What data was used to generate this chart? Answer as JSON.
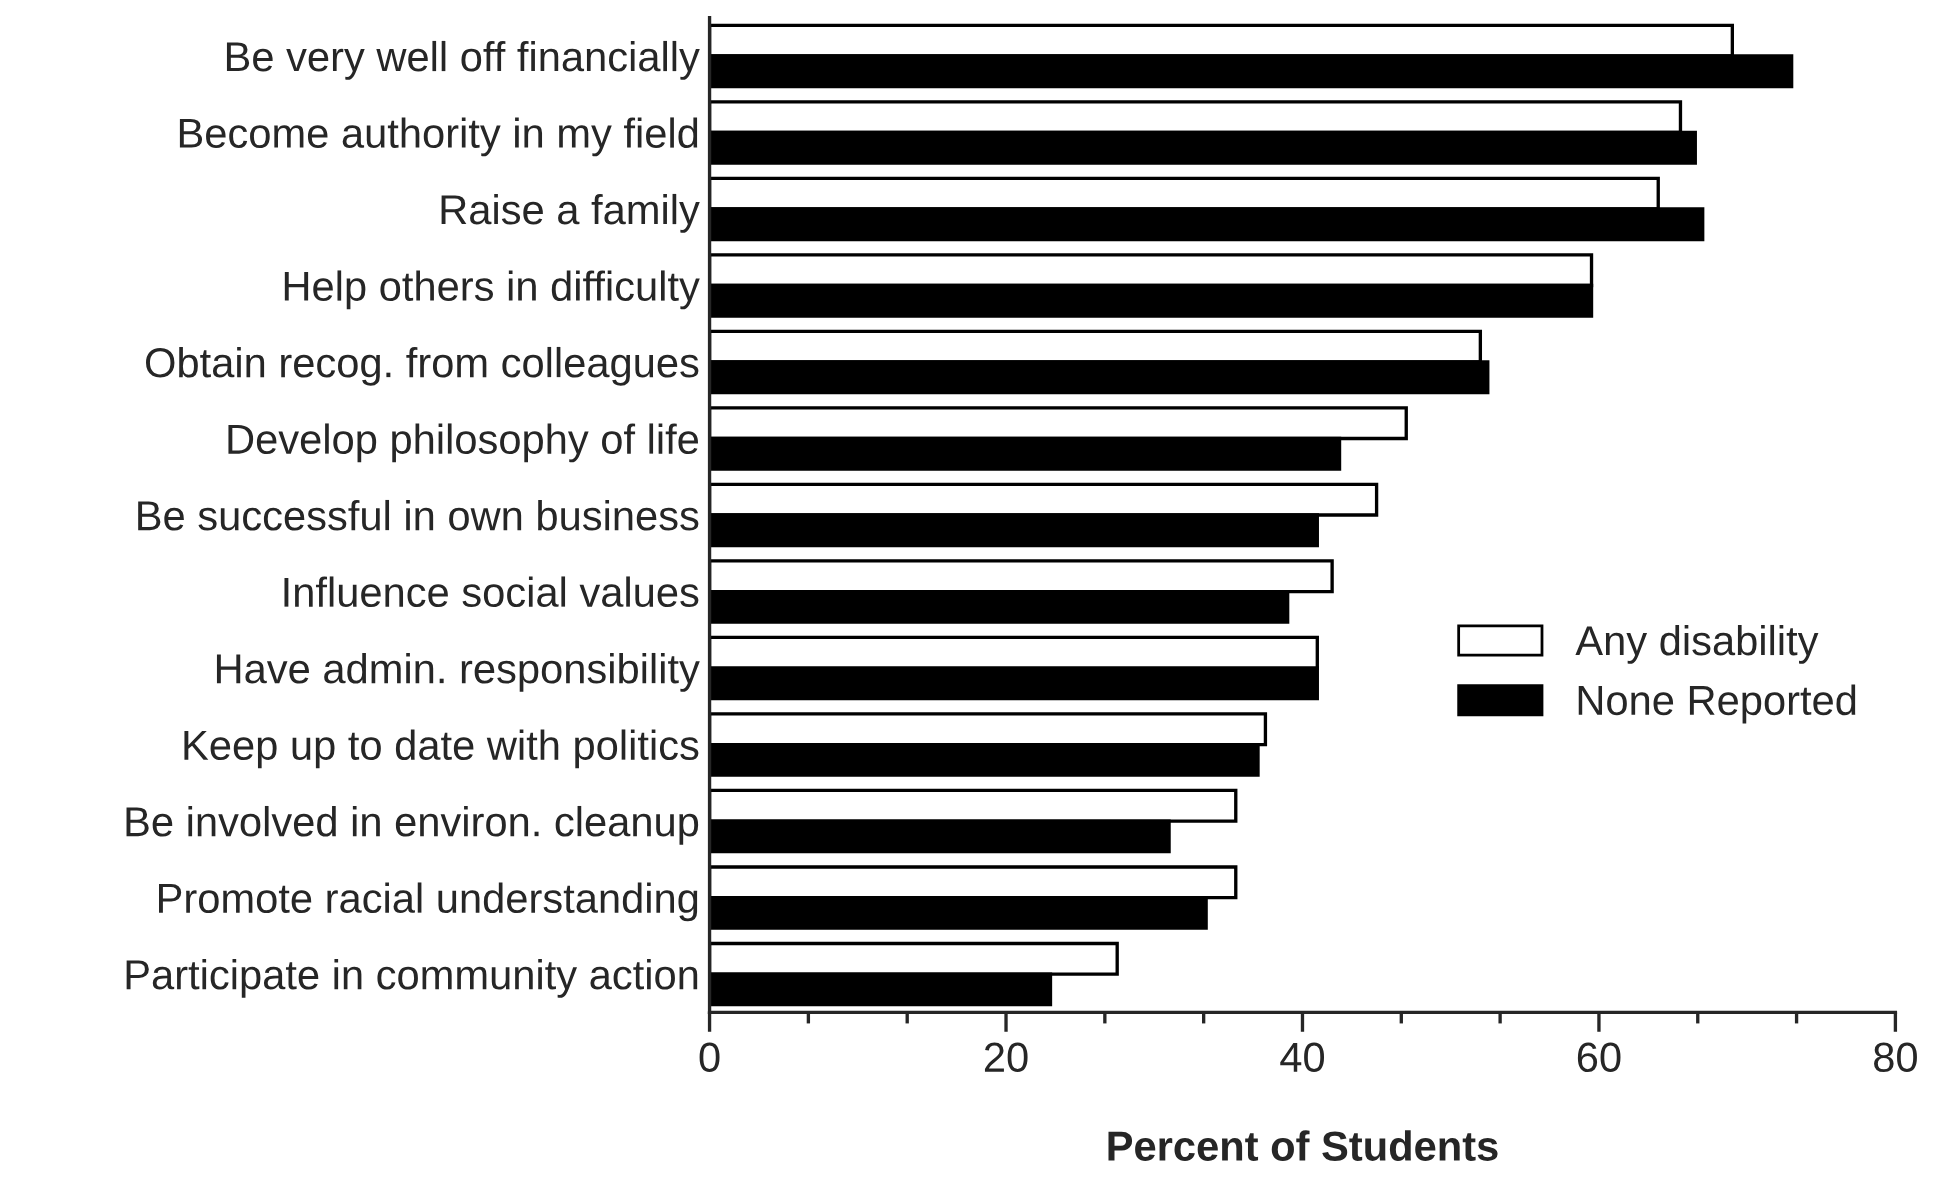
{
  "chart_data": {
    "type": "bar",
    "orientation": "horizontal",
    "xlabel": "Percent of Students",
    "categories": [
      "Be very well off financially",
      "Become authority in my field",
      "Raise a family",
      "Help others in difficulty",
      "Obtain recog. from colleagues",
      "Develop philosophy of life",
      "Be successful in own business",
      "Influence social values",
      "Have admin. responsibility",
      "Keep up to date with politics",
      "Be involved in environ. cleanup",
      "Promote racial understanding",
      "Participate in community action"
    ],
    "series": [
      {
        "name": "Any disability",
        "color": "#ffffff",
        "values": [
          69,
          65.5,
          64,
          59.5,
          52,
          47,
          45,
          42,
          41,
          37.5,
          35.5,
          35.5,
          27.5
        ]
      },
      {
        "name": "None Reported",
        "color": "#000000",
        "values": [
          73,
          66.5,
          67,
          59.5,
          52.5,
          42.5,
          41,
          39,
          41,
          37,
          31,
          33.5,
          23
        ]
      }
    ],
    "xlim": [
      0,
      80
    ],
    "xticks": [
      0,
      20,
      40,
      60,
      80
    ],
    "grid": false,
    "legend": "right"
  }
}
